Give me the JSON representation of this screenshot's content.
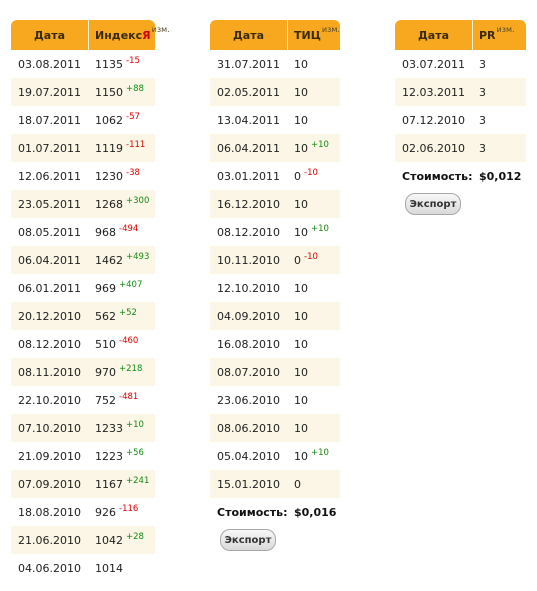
{
  "index_table": {
    "header": {
      "date": "Дата",
      "value": "Индекс ",
      "ya": "Я",
      "change": "изм."
    },
    "rows": [
      {
        "date": "03.08.2011",
        "value": "1135",
        "delta": "-15"
      },
      {
        "date": "19.07.2011",
        "value": "1150",
        "delta": "+88"
      },
      {
        "date": "18.07.2011",
        "value": "1062",
        "delta": "-57"
      },
      {
        "date": "01.07.2011",
        "value": "1119",
        "delta": "-111"
      },
      {
        "date": "12.06.2011",
        "value": "1230",
        "delta": "-38"
      },
      {
        "date": "23.05.2011",
        "value": "1268",
        "delta": "+300"
      },
      {
        "date": "08.05.2011",
        "value": "968",
        "delta": "-494"
      },
      {
        "date": "06.04.2011",
        "value": "1462",
        "delta": "+493"
      },
      {
        "date": "06.01.2011",
        "value": "969",
        "delta": "+407"
      },
      {
        "date": "20.12.2010",
        "value": "562",
        "delta": "+52"
      },
      {
        "date": "08.12.2010",
        "value": "510",
        "delta": "-460"
      },
      {
        "date": "08.11.2010",
        "value": "970",
        "delta": "+218"
      },
      {
        "date": "22.10.2010",
        "value": "752",
        "delta": "-481"
      },
      {
        "date": "07.10.2010",
        "value": "1233",
        "delta": "+10"
      },
      {
        "date": "21.09.2010",
        "value": "1223",
        "delta": "+56"
      },
      {
        "date": "07.09.2010",
        "value": "1167",
        "delta": "+241"
      },
      {
        "date": "18.08.2010",
        "value": "926",
        "delta": "-116"
      },
      {
        "date": "21.06.2010",
        "value": "1042",
        "delta": "+28"
      },
      {
        "date": "04.06.2010",
        "value": "1014",
        "delta": ""
      }
    ]
  },
  "tic_table": {
    "header": {
      "date": "Дата",
      "value": "ТИЦ",
      "change": "изм."
    },
    "rows": [
      {
        "date": "31.07.2011",
        "value": "10",
        "delta": ""
      },
      {
        "date": "02.05.2011",
        "value": "10",
        "delta": ""
      },
      {
        "date": "13.04.2011",
        "value": "10",
        "delta": ""
      },
      {
        "date": "06.04.2011",
        "value": "10",
        "delta": "+10"
      },
      {
        "date": "03.01.2011",
        "value": "0",
        "delta": "-10"
      },
      {
        "date": "16.12.2010",
        "value": "10",
        "delta": ""
      },
      {
        "date": "08.12.2010",
        "value": "10",
        "delta": "+10"
      },
      {
        "date": "10.11.2010",
        "value": "0",
        "delta": "-10"
      },
      {
        "date": "12.10.2010",
        "value": "10",
        "delta": ""
      },
      {
        "date": "04.09.2010",
        "value": "10",
        "delta": ""
      },
      {
        "date": "16.08.2010",
        "value": "10",
        "delta": ""
      },
      {
        "date": "08.07.2010",
        "value": "10",
        "delta": ""
      },
      {
        "date": "23.06.2010",
        "value": "10",
        "delta": ""
      },
      {
        "date": "08.06.2010",
        "value": "10",
        "delta": ""
      },
      {
        "date": "05.04.2010",
        "value": "10",
        "delta": "+10"
      },
      {
        "date": "15.01.2010",
        "value": "0",
        "delta": ""
      }
    ],
    "cost_label": "Стоимость:",
    "cost_value": "$0,016",
    "export_label": "Экспорт"
  },
  "pr_table": {
    "header": {
      "date": "Дата",
      "value": "PR",
      "change": "изм."
    },
    "rows": [
      {
        "date": "03.07.2011",
        "value": "3",
        "delta": ""
      },
      {
        "date": "12.03.2011",
        "value": "3",
        "delta": ""
      },
      {
        "date": "07.12.2010",
        "value": "3",
        "delta": ""
      },
      {
        "date": "02.06.2010",
        "value": "3",
        "delta": ""
      }
    ],
    "cost_label": "Стоимость:",
    "cost_value": "$0,012",
    "export_label": "Экспорт"
  },
  "colors": {
    "header_bg": "#f7a81e",
    "row_alt_bg": "#fbf6e6",
    "negative": "#dd0000",
    "positive": "#138a13",
    "yandex_red": "#d40000"
  }
}
